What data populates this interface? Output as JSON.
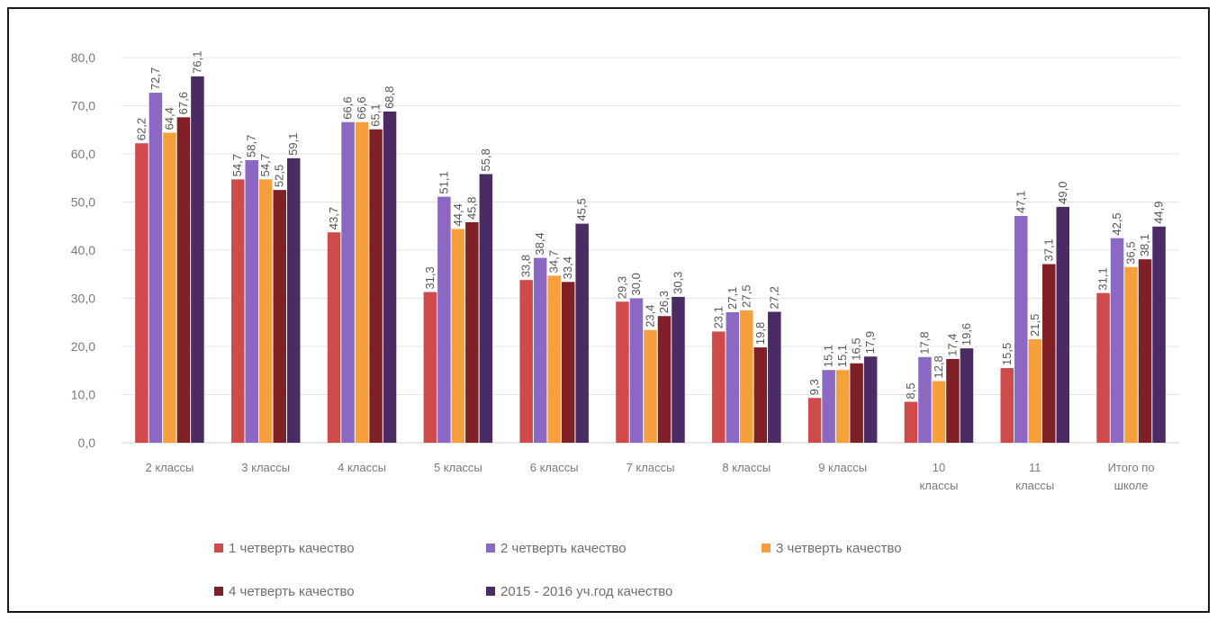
{
  "chart_data": {
    "type": "bar",
    "title": "",
    "xlabel": "",
    "ylabel": "",
    "ylim": [
      0,
      80
    ],
    "yticks": [
      "0,0",
      "10,0",
      "20,0",
      "30,0",
      "40,0",
      "50,0",
      "60,0",
      "70,0",
      "80,0"
    ],
    "grid": true,
    "legend_position": "bottom",
    "categories": [
      [
        "2 классы"
      ],
      [
        "3 классы"
      ],
      [
        "4 классы"
      ],
      [
        "5 классы"
      ],
      [
        "6 классы"
      ],
      [
        "7 классы"
      ],
      [
        "8 классы"
      ],
      [
        "9 классы"
      ],
      [
        "10",
        "классы"
      ],
      [
        "11",
        "классы"
      ],
      [
        "Итого по",
        "школе"
      ]
    ],
    "series": [
      {
        "name": "1 четверть качество",
        "color": "#cf4a4a",
        "values": [
          62.2,
          54.7,
          43.7,
          31.3,
          33.8,
          29.3,
          23.1,
          9.3,
          8.5,
          15.5,
          31.1
        ],
        "labels": [
          "62,2",
          "54,7",
          "43,7",
          "31,3",
          "33,8",
          "29,3",
          "23,1",
          "9,3",
          "8,5",
          "15,5",
          "31,1"
        ]
      },
      {
        "name": "2 четверть качество",
        "color": "#8a68c4",
        "values": [
          72.7,
          58.7,
          66.6,
          51.1,
          38.4,
          30.0,
          27.1,
          15.1,
          17.8,
          47.1,
          42.5
        ],
        "labels": [
          "72,7",
          "58,7",
          "66,6",
          "51,1",
          "38,4",
          "30,0",
          "27,1",
          "15,1",
          "17,8",
          "47,1",
          "42,5"
        ]
      },
      {
        "name": "3 четверть качество",
        "color": "#f5a03c",
        "values": [
          64.4,
          54.7,
          66.6,
          44.4,
          34.7,
          23.4,
          27.5,
          15.1,
          12.8,
          21.5,
          36.5
        ],
        "labels": [
          "64,4",
          "54,7",
          "66,6",
          "44,4",
          "34,7",
          "23,4",
          "27,5",
          "15,1",
          "12,8",
          "21,5",
          "36,5"
        ]
      },
      {
        "name": "4 четверть качество",
        "color": "#7f1f26",
        "values": [
          67.6,
          52.5,
          65.1,
          45.8,
          33.4,
          26.3,
          19.8,
          16.5,
          17.4,
          37.1,
          38.1
        ],
        "labels": [
          "67,6",
          "52,5",
          "65,1",
          "45,8",
          "33,4",
          "26,3",
          "19,8",
          "16,5",
          "17,4",
          "37,1",
          "38,1"
        ]
      },
      {
        "name": "2015 - 2016 уч.год качество",
        "color": "#4b2b63",
        "values": [
          76.1,
          59.1,
          68.8,
          55.8,
          45.5,
          30.3,
          27.2,
          17.9,
          19.6,
          49.0,
          44.9
        ],
        "labels": [
          "76,1",
          "59,1",
          "68,8",
          "55,8",
          "45,5",
          "30,3",
          "27,2",
          "17,9",
          "19,6",
          "49,0",
          "44,9"
        ]
      }
    ]
  }
}
